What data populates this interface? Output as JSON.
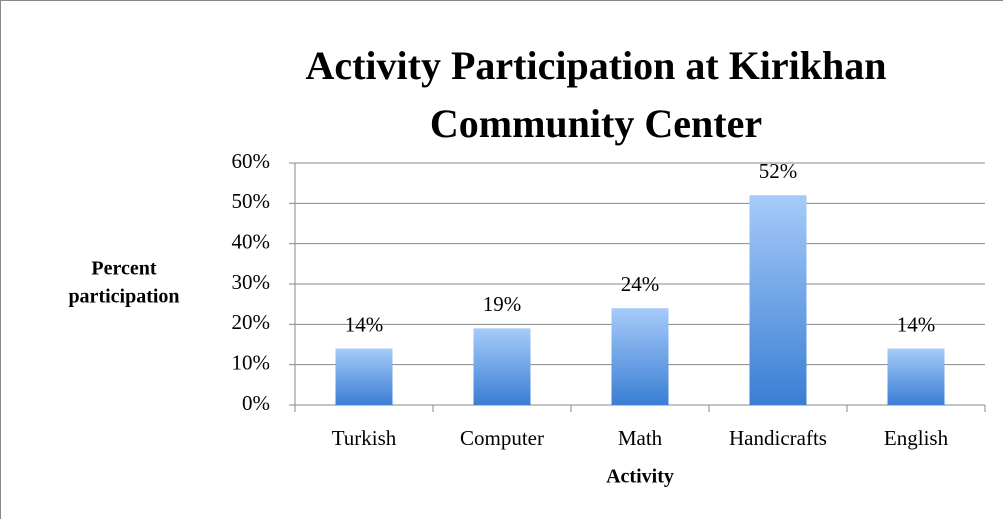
{
  "chart_data": {
    "type": "bar",
    "title_lines": [
      "Activity Participation at Kirikhan",
      "Community Center"
    ],
    "x_label": "Activity",
    "y_label_lines": [
      "Percent",
      "participation"
    ],
    "categories": [
      "Turkish",
      "Computer",
      "Math",
      "Handicrafts",
      "English"
    ],
    "values": [
      14,
      19,
      24,
      52,
      14
    ],
    "value_labels": [
      "14%",
      "19%",
      "24%",
      "52%",
      "14%"
    ],
    "color": "#4a8ae0",
    "ylim": [
      0,
      60
    ],
    "yticks": [
      {
        "value": 0,
        "label": "0%"
      },
      {
        "value": 10,
        "label": "10%"
      },
      {
        "value": 20,
        "label": "20%"
      },
      {
        "value": 30,
        "label": "30%"
      },
      {
        "value": 40,
        "label": "40%"
      },
      {
        "value": 50,
        "label": "50%"
      },
      {
        "value": 60,
        "label": "60%"
      }
    ],
    "grid": true
  }
}
